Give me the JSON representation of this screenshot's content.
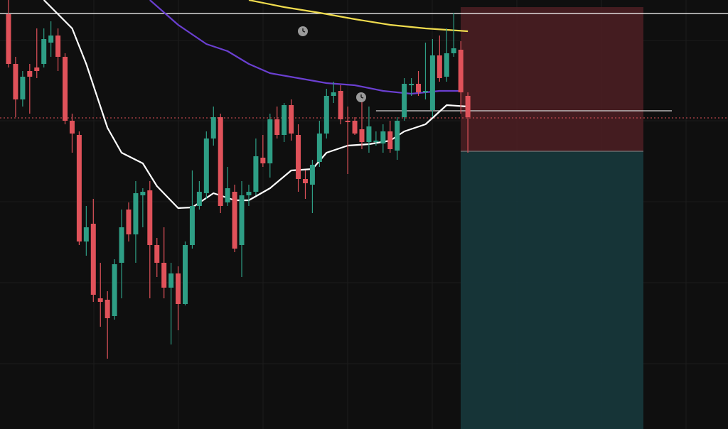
{
  "chart_data": {
    "type": "candlestick",
    "ylim": [
      0,
      604
    ],
    "up_color": "#2e9e85",
    "down_color": "#e0525a",
    "candles": [
      [
        584,
        604,
        509,
        514
      ],
      [
        514,
        524,
        439,
        464
      ],
      [
        464,
        504,
        454,
        496
      ],
      [
        504,
        514,
        444,
        496
      ],
      [
        509,
        564,
        494,
        504
      ],
      [
        514,
        564,
        509,
        549
      ],
      [
        544,
        574,
        524,
        554
      ],
      [
        554,
        564,
        504,
        524
      ],
      [
        524,
        529,
        429,
        434
      ],
      [
        434,
        444,
        389,
        416
      ],
      [
        414,
        419,
        259,
        264
      ],
      [
        264,
        314,
        244,
        284
      ],
      [
        289,
        324,
        179,
        189
      ],
      [
        184,
        234,
        144,
        179
      ],
      [
        182,
        194,
        99,
        156
      ],
      [
        159,
        239,
        154,
        232
      ],
      [
        234,
        309,
        184,
        284
      ],
      [
        309,
        319,
        264,
        274
      ],
      [
        274,
        349,
        234,
        332
      ],
      [
        329,
        339,
        284,
        334
      ],
      [
        336,
        349,
        184,
        259
      ],
      [
        259,
        269,
        214,
        234
      ],
      [
        234,
        284,
        184,
        199
      ],
      [
        199,
        234,
        119,
        219
      ],
      [
        219,
        229,
        139,
        176
      ],
      [
        176,
        264,
        174,
        259
      ],
      [
        259,
        364,
        254,
        314
      ],
      [
        314,
        349,
        309,
        334
      ],
      [
        332,
        419,
        324,
        409
      ],
      [
        409,
        454,
        399,
        439
      ],
      [
        439,
        444,
        304,
        314
      ],
      [
        319,
        369,
        314,
        339
      ],
      [
        334,
        344,
        249,
        254
      ],
      [
        259,
        349,
        214,
        329
      ],
      [
        329,
        344,
        314,
        334
      ],
      [
        334,
        409,
        329,
        384
      ],
      [
        382,
        414,
        369,
        374
      ],
      [
        374,
        444,
        354,
        436
      ],
      [
        436,
        454,
        409,
        414
      ],
      [
        414,
        459,
        404,
        456
      ],
      [
        456,
        464,
        406,
        416
      ],
      [
        414,
        429,
        334,
        352
      ],
      [
        352,
        364,
        324,
        346
      ],
      [
        344,
        379,
        304,
        372
      ],
      [
        376,
        434,
        369,
        416
      ],
      [
        416,
        479,
        409,
        469
      ],
      [
        469,
        489,
        459,
        474
      ],
      [
        476,
        484,
        429,
        436
      ],
      [
        434,
        454,
        359,
        432
      ],
      [
        434,
        439,
        414,
        416
      ],
      [
        422,
        464,
        394,
        404
      ],
      [
        404,
        454,
        389,
        426
      ],
      [
        404,
        419,
        399,
        406
      ],
      [
        402,
        429,
        389,
        419
      ],
      [
        419,
        434,
        389,
        394
      ],
      [
        392,
        439,
        379,
        434
      ],
      [
        439,
        494,
        434,
        486
      ],
      [
        484,
        494,
        469,
        486
      ],
      [
        486,
        504,
        469,
        474
      ],
      [
        474,
        544,
        464,
        476
      ],
      [
        449,
        549,
        439,
        526
      ],
      [
        526,
        554,
        489,
        494
      ],
      [
        496,
        564,
        489,
        529
      ],
      [
        529,
        586,
        524,
        536
      ],
      [
        534,
        546,
        444,
        474
      ],
      [
        469,
        474,
        389,
        439
      ]
    ],
    "overlays": [
      {
        "color": "#ffffff",
        "x": [
          5,
          9,
          11,
          14,
          16,
          19,
          21,
          24,
          26,
          29,
          32,
          34,
          37,
          40,
          43,
          45,
          48,
          51,
          54,
          56,
          59,
          62,
          65
        ],
        "values": [
          604,
          564,
          514,
          424,
          389,
          374,
          342,
          311,
          312,
          332,
          322,
          322,
          339,
          364,
          366,
          389,
          399,
          401,
          406,
          419,
          429,
          456,
          454
        ]
      },
      {
        "color": "#6a3fd0",
        "x": [
          20,
          24,
          28,
          31,
          34,
          37,
          41,
          45,
          49,
          53,
          57,
          61,
          64
        ],
        "values": [
          604,
          569,
          542,
          532,
          514,
          501,
          494,
          487,
          484,
          476,
          472,
          476,
          476
        ]
      },
      {
        "color": "#f0dc4e",
        "x": [
          34,
          39,
          44,
          49,
          54,
          59,
          65
        ],
        "values": [
          604,
          594,
          586,
          577,
          569,
          564,
          560
        ]
      }
    ],
    "hlines": [
      {
        "value": 585,
        "color": "#ffffff",
        "style": "solid"
      },
      {
        "value": 438,
        "color": "#e0525a",
        "style": "dotted"
      },
      {
        "value": 448,
        "color": "#d8d8d8",
        "style": "solid",
        "from": 52
      }
    ]
  }
}
